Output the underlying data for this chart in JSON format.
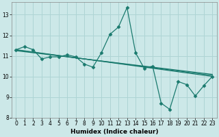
{
  "xlabel": "Humidex (Indice chaleur)",
  "bg_color": "#cce8e8",
  "grid_color": "#aed4d4",
  "line_color": "#1a7a6e",
  "xlim": [
    -0.5,
    23.5
  ],
  "ylim": [
    8,
    13.6
  ],
  "yticks": [
    8,
    9,
    10,
    11,
    12,
    13
  ],
  "xticks": [
    0,
    1,
    2,
    3,
    4,
    5,
    6,
    7,
    8,
    9,
    10,
    11,
    12,
    13,
    14,
    15,
    16,
    17,
    18,
    19,
    20,
    21,
    22,
    23
  ],
  "series1_x": [
    0,
    1,
    2,
    3,
    4,
    5,
    6,
    7,
    8,
    9,
    10,
    11,
    12,
    13,
    14,
    15,
    16,
    17,
    18,
    19,
    20,
    21,
    22,
    23
  ],
  "series1_y": [
    11.3,
    11.45,
    11.3,
    10.85,
    10.95,
    10.95,
    11.05,
    10.95,
    10.6,
    10.45,
    11.15,
    12.05,
    12.4,
    13.35,
    11.15,
    10.4,
    10.5,
    8.7,
    8.4,
    9.75,
    9.6,
    9.05,
    9.55,
    10.0
  ],
  "series2_x": [
    0,
    23
  ],
  "series2_y": [
    11.3,
    10.0
  ],
  "series3_x": [
    0,
    23
  ],
  "series3_y": [
    11.28,
    10.05
  ],
  "series4_x": [
    0,
    23
  ],
  "series4_y": [
    11.25,
    10.1
  ],
  "tick_fontsize": 5.5,
  "xlabel_fontsize": 6.5
}
